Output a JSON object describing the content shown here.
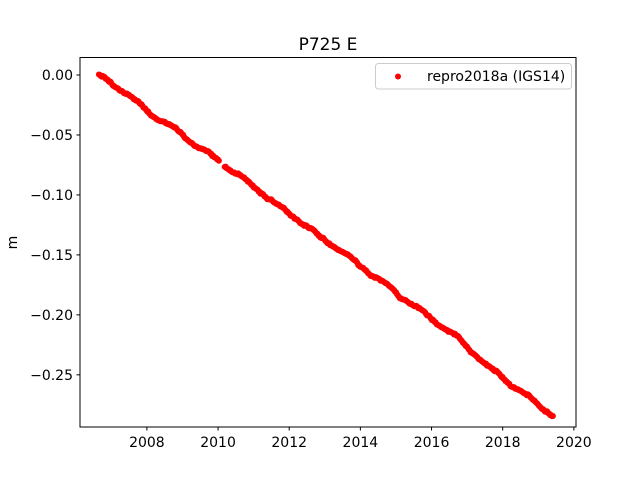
{
  "figure": {
    "background": "#ffffff",
    "axes_background": "#ffffff",
    "spine_color": "#000000",
    "tick_color": "#000000"
  },
  "chart_data": {
    "type": "scatter",
    "title": "P725 E",
    "xlabel": "",
    "ylabel": "m",
    "grid": false,
    "xlim": [
      2006.12,
      2020.06
    ],
    "ylim": [
      -0.2935,
      0.0146
    ],
    "xticks": {
      "values": [
        2008,
        2010,
        2012,
        2014,
        2016,
        2018,
        2020
      ],
      "labels": [
        "2008",
        "2010",
        "2012",
        "2014",
        "2016",
        "2018",
        "2020"
      ]
    },
    "yticks": {
      "values": [
        0.0,
        -0.05,
        -0.1,
        -0.15,
        -0.2,
        -0.25
      ],
      "labels": [
        "0.00",
        "−0.05",
        "−0.10",
        "−0.15",
        "−0.20",
        "−0.25"
      ]
    },
    "legend": {
      "position": "upper right",
      "frame": true,
      "border_color": "#cccccc",
      "background": "#ffffff",
      "entries": [
        {
          "label": "repro2018a (IGS14)",
          "color": "#ff0000",
          "marker": "dot"
        }
      ]
    },
    "series": [
      {
        "name": "repro2018a (IGS14)",
        "color": "#ff0000",
        "marker": "point",
        "marker_px_radius": 3,
        "trend": {
          "x_start": 2006.65,
          "x_end": 2019.41,
          "y_start": 0.0,
          "y_end": -0.281,
          "slope_m_per_year": -0.022
        },
        "gaps": [
          [
            2010.03,
            2010.17
          ]
        ],
        "noise": {
          "seed": 42,
          "step": 0.0012,
          "max": 0.0032,
          "seasonal_amp": 0.0012,
          "jitter": 0.001,
          "n_points": 470
        },
        "sample_points": [
          [
            2006.65,
            0.0
          ],
          [
            2007.0,
            -0.0077
          ],
          [
            2007.5,
            -0.0187
          ],
          [
            2008.0,
            -0.0297
          ],
          [
            2008.5,
            -0.0407
          ],
          [
            2009.0,
            -0.0517
          ],
          [
            2009.5,
            -0.0627
          ],
          [
            2010.0,
            -0.0738
          ],
          [
            2010.5,
            -0.0848
          ],
          [
            2011.0,
            -0.0958
          ],
          [
            2011.5,
            -0.1068
          ],
          [
            2012.0,
            -0.1178
          ],
          [
            2012.5,
            -0.1288
          ],
          [
            2013.0,
            -0.1398
          ],
          [
            2013.5,
            -0.1508
          ],
          [
            2014.0,
            -0.1618
          ],
          [
            2014.5,
            -0.1729
          ],
          [
            2015.0,
            -0.1839
          ],
          [
            2015.5,
            -0.1949
          ],
          [
            2016.0,
            -0.2059
          ],
          [
            2016.5,
            -0.2169
          ],
          [
            2017.0,
            -0.2279
          ],
          [
            2017.5,
            -0.2389
          ],
          [
            2018.0,
            -0.2499
          ],
          [
            2018.5,
            -0.261
          ],
          [
            2019.0,
            -0.272
          ],
          [
            2019.41,
            -0.281
          ]
        ]
      }
    ]
  }
}
